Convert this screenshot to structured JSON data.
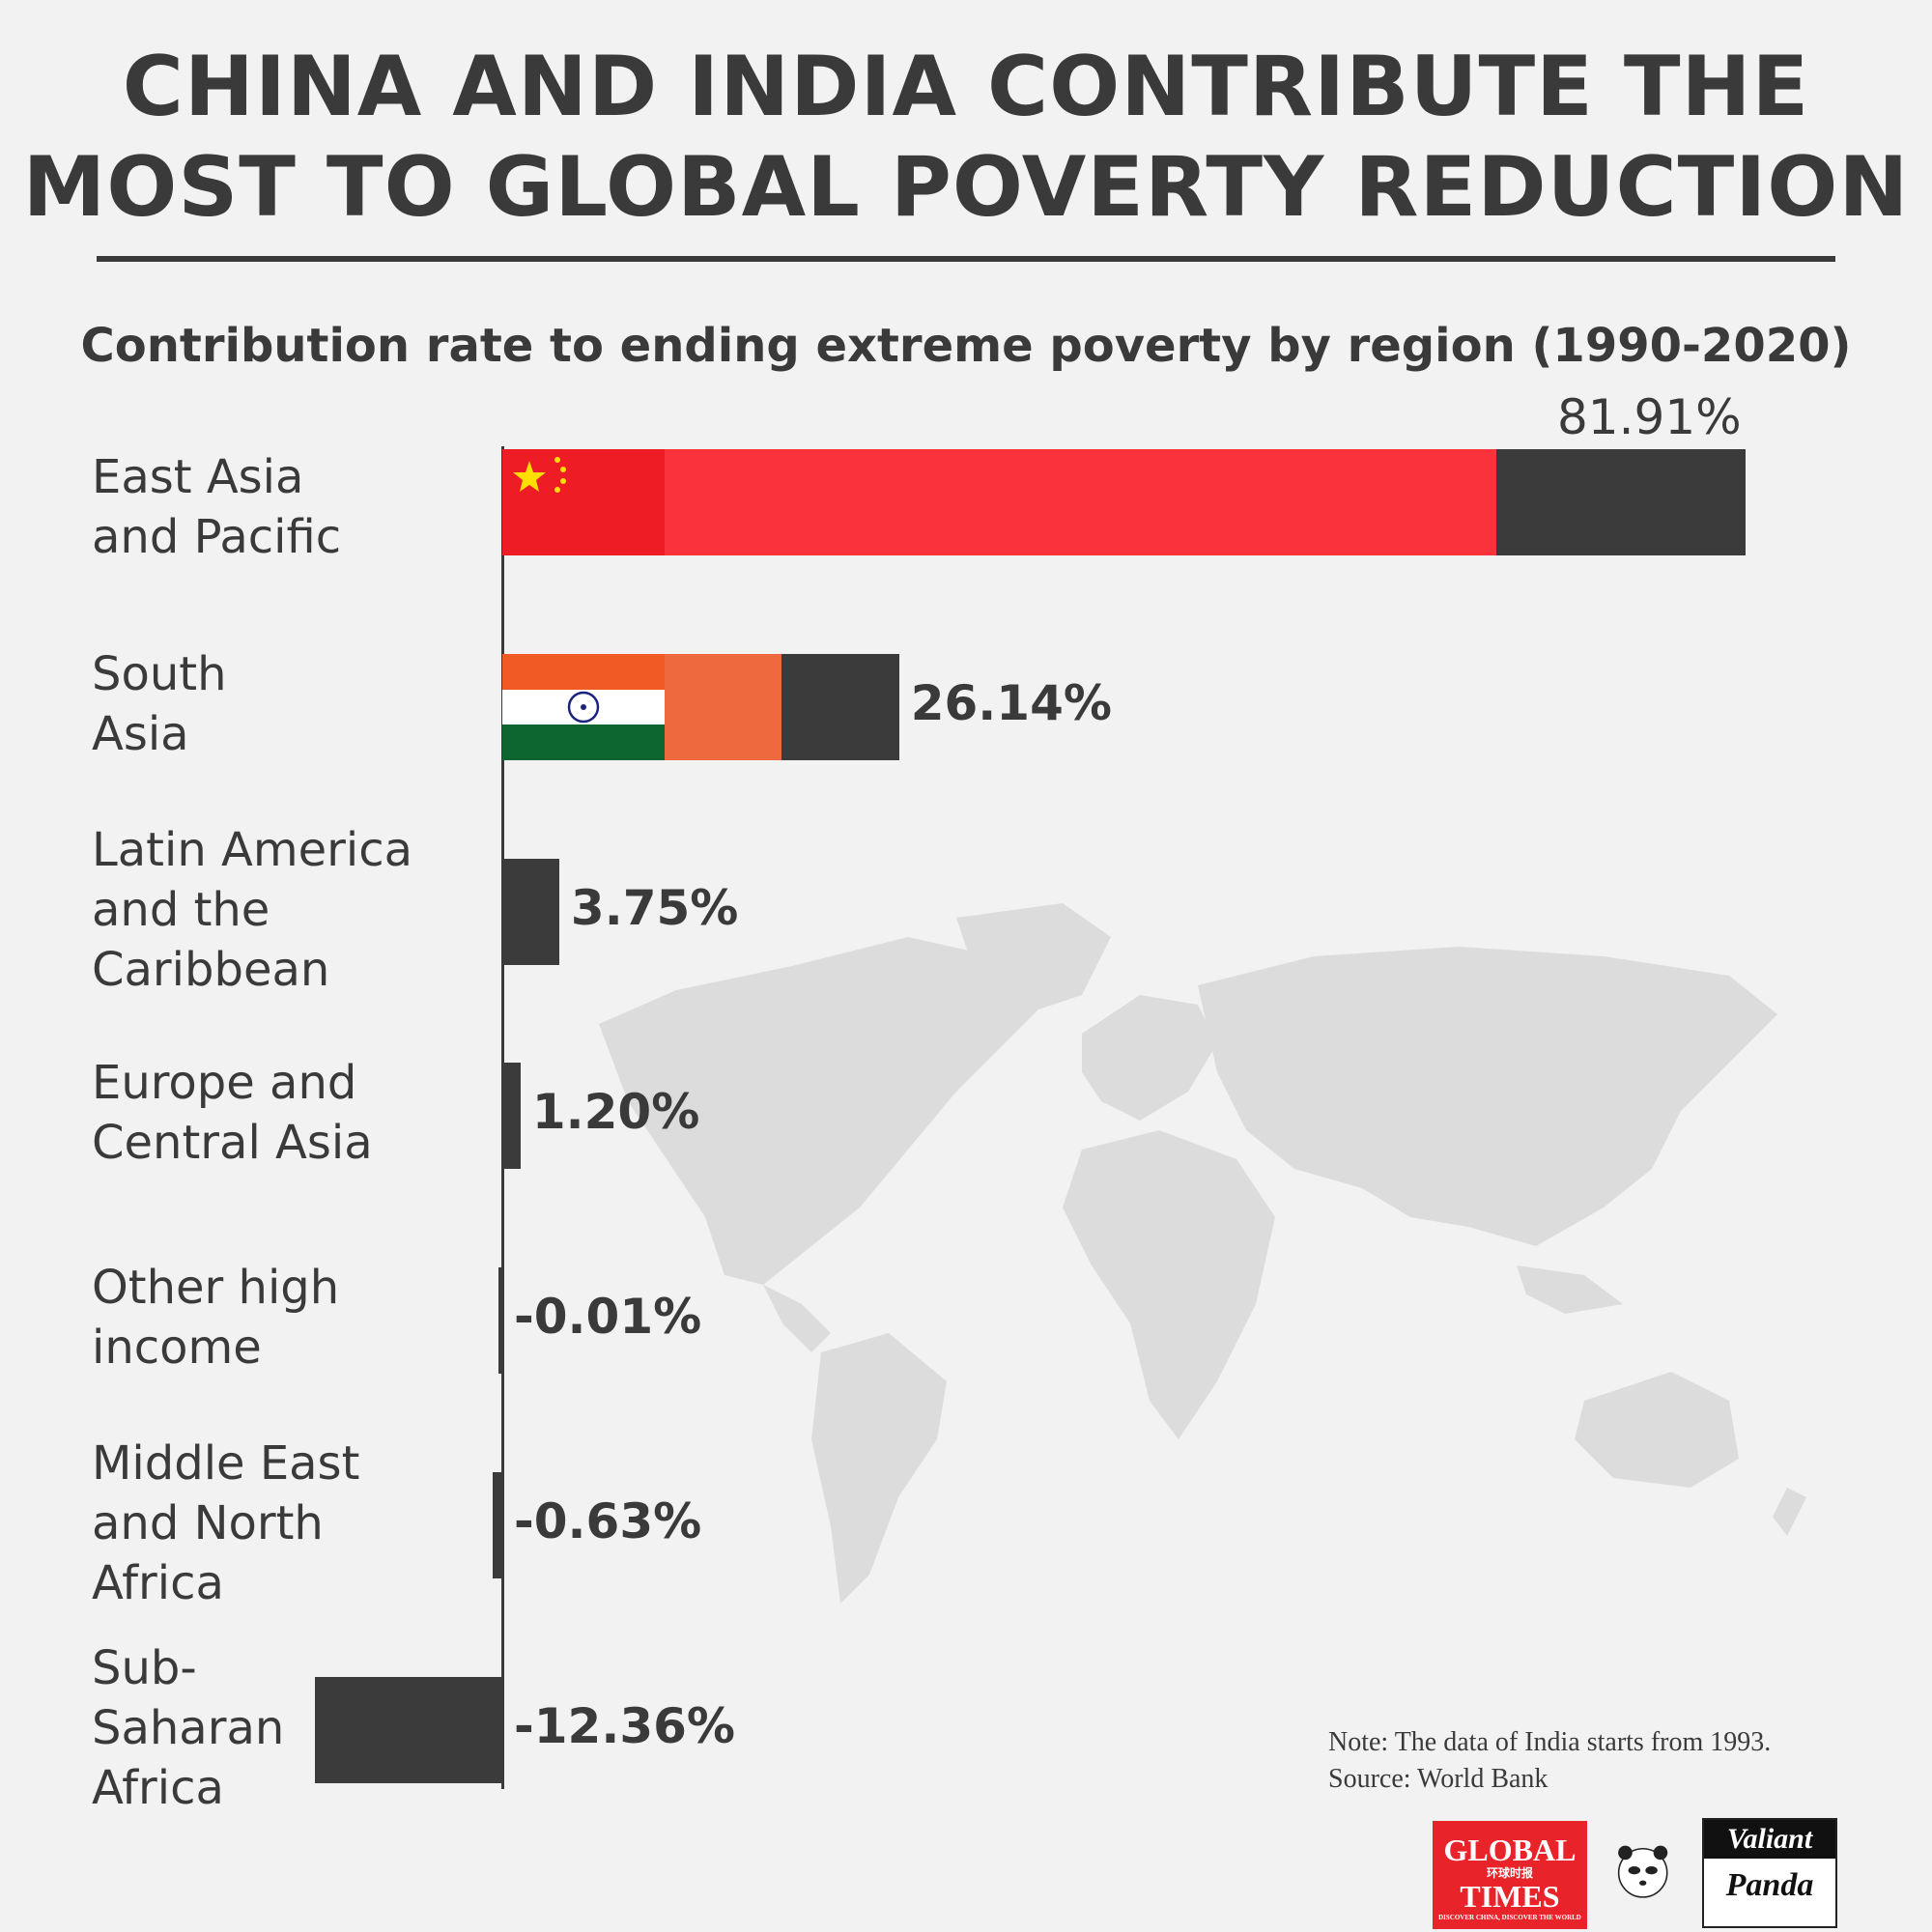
{
  "title": {
    "line1": "CHINA AND INDIA CONTRIBUTE THE",
    "line2": "MOST TO GLOBAL POVERTY REDUCTION"
  },
  "colors": {
    "dark": "#3b3b3b",
    "china_red": "#fa323c",
    "flag_red": "#ee1c25",
    "india_orange": "#ee6a3e",
    "saffron": "#f15a24",
    "india_green": "#0d6630"
  },
  "chart_data": {
    "type": "bar",
    "orientation": "horizontal",
    "title": "Contribution rate to ending extreme poverty by region (1990-2020)",
    "unit": "%",
    "categories": [
      "East Asia and Pacific",
      "South Asia",
      "Latin America and the Caribbean",
      "Europe and Central Asia",
      "Other high income",
      "Middle East and North Africa",
      "Sub-Saharan Africa"
    ],
    "label_lines": [
      [
        "East Asia",
        "and Pacific"
      ],
      [
        "South",
        "Asia"
      ],
      [
        "Latin America",
        "and the",
        "Caribbean"
      ],
      [
        "Europe and",
        "Central Asia"
      ],
      [
        "Other high",
        "income"
      ],
      [
        "Middle East",
        "and North",
        "Africa"
      ],
      [
        "Sub-",
        "Saharan",
        "Africa"
      ]
    ],
    "values": [
      81.91,
      26.14,
      3.75,
      1.2,
      -0.01,
      -0.63,
      -12.36
    ],
    "value_labels": [
      "81.91%",
      "26.14%",
      "3.75%",
      "1.20%",
      "-0.01%",
      "-0.63%",
      "-12.36%"
    ],
    "highlight_share": [
      {
        "country": "China",
        "value": 65.5
      },
      {
        "country": "India",
        "value": 18.4
      }
    ],
    "xlim": [
      -12.36,
      81.91
    ]
  },
  "footer": {
    "note": "Note: The data of India starts from 1993.",
    "source": "Source: World Bank"
  },
  "logos": {
    "global_times_1": "GLOBAL",
    "global_times_cn": "环球时报",
    "global_times_2": "TIMES",
    "global_times_tag": "DISCOVER CHINA, DISCOVER THE WORLD",
    "valiant": "Valiant",
    "panda": "Panda"
  }
}
